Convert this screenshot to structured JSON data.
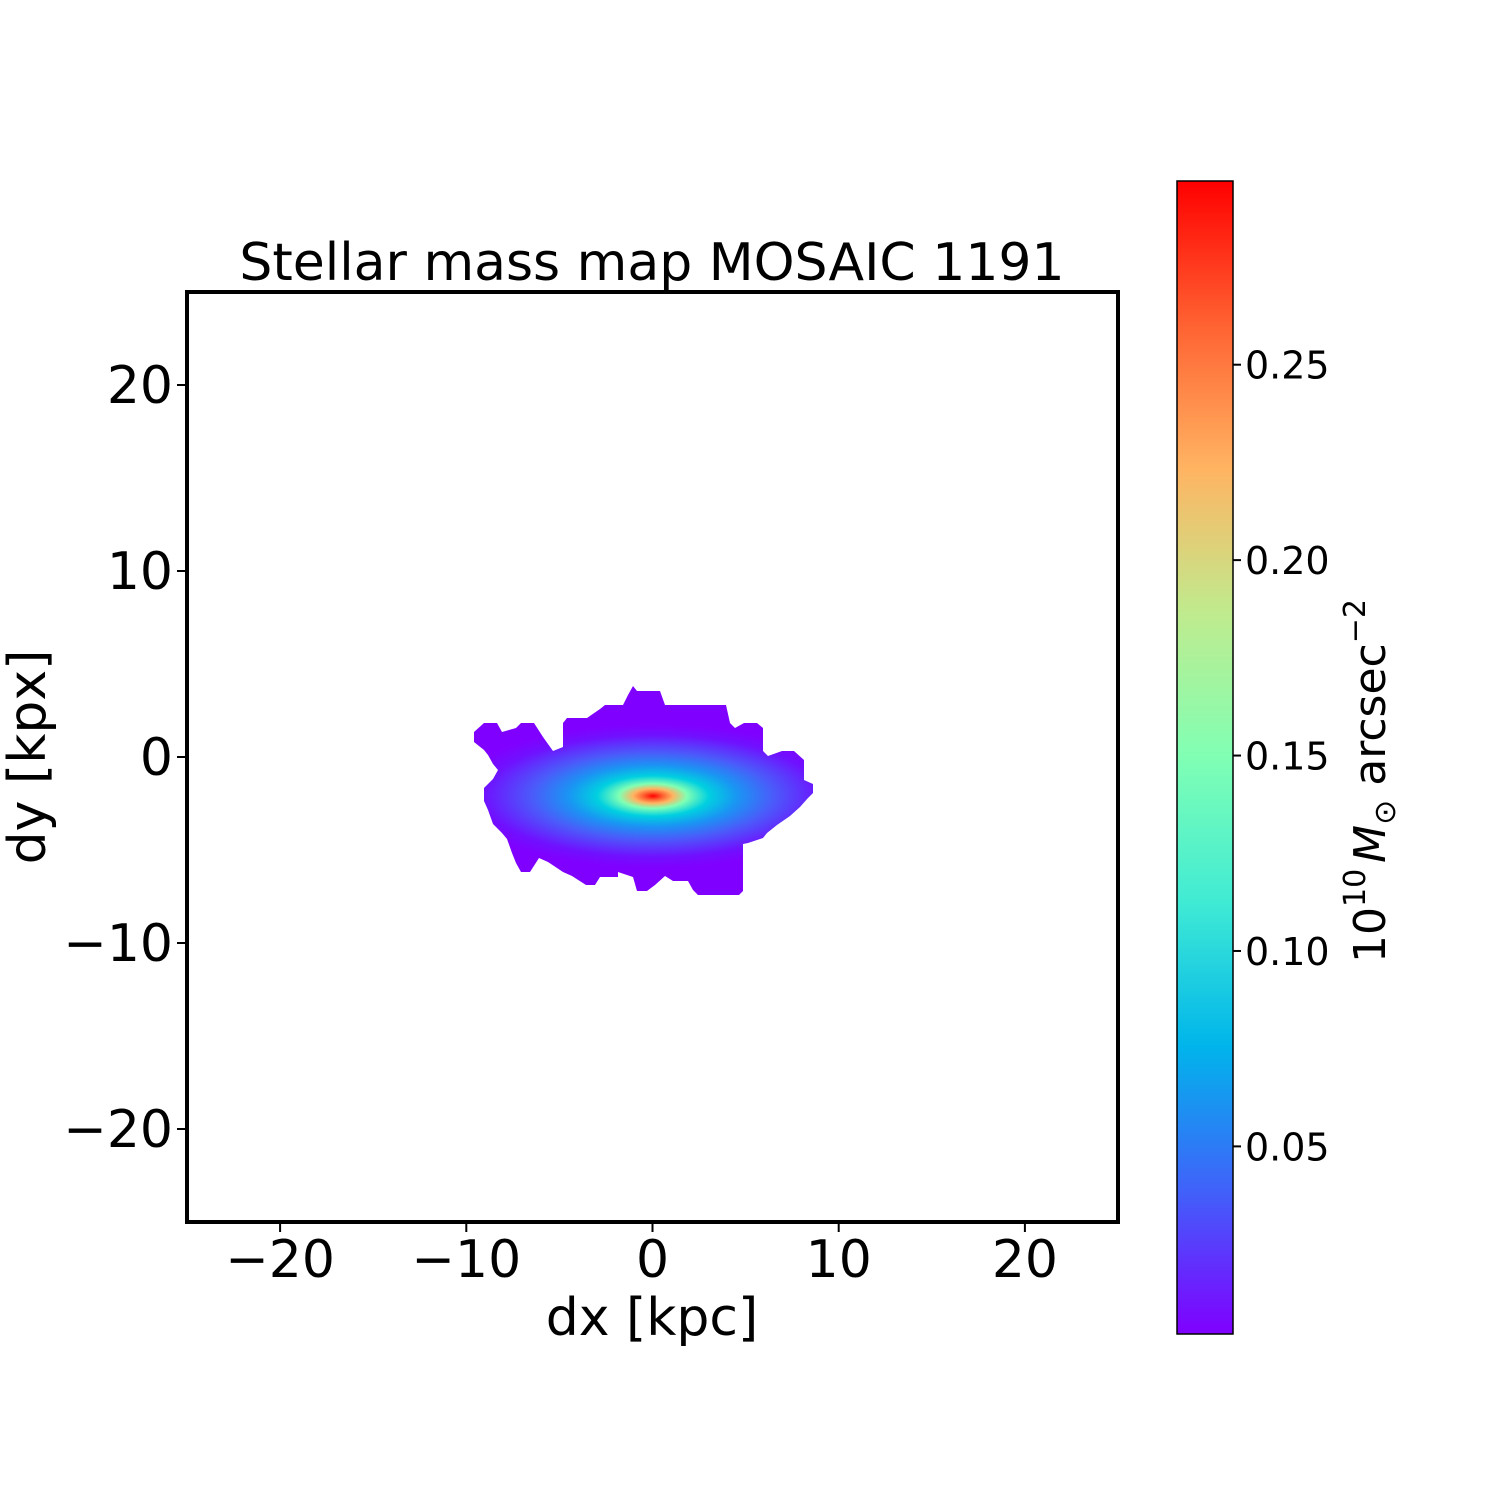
{
  "chart_data": {
    "type": "heatmap",
    "title": "Stellar mass map MOSAIC 1191",
    "xlabel": "dx [kpc]",
    "ylabel": "dy [kpx]",
    "xlim": [
      -25,
      25
    ],
    "ylim": [
      -25,
      25
    ],
    "xticks": [
      -20,
      -10,
      0,
      10,
      20
    ],
    "yticks": [
      -20,
      -10,
      0,
      10,
      20
    ],
    "xtick_labels": [
      "−20",
      "−10",
      "0",
      "10",
      "20"
    ],
    "ytick_labels": [
      "−20",
      "−10",
      "0",
      "10",
      "20"
    ],
    "grid": false,
    "colormap": "rainbow",
    "background": "#ffffff",
    "peak_position": [
      0,
      -2
    ],
    "peak_value": 0.29,
    "source_extent": {
      "x": [
        -9.5,
        8.5
      ],
      "y": [
        -7.3,
        3.7
      ]
    },
    "colorbar": {
      "label_parts": {
        "base": "10",
        "exp": "10",
        "unit": "M",
        "sub": "⊙",
        "rest": " arcsec",
        "rest_exp": "−2"
      },
      "range": [
        0.002,
        0.297
      ],
      "ticks": [
        0.05,
        0.1,
        0.15,
        0.2,
        0.25
      ],
      "tick_labels": [
        "0.05",
        "0.10",
        "0.15",
        "0.20",
        "0.25"
      ]
    }
  }
}
